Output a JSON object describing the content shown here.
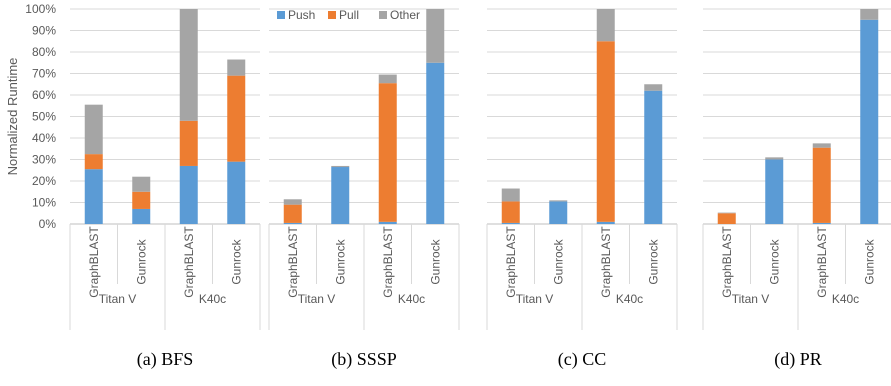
{
  "chart_data": {
    "type": "bar",
    "stacked": true,
    "ylabel": "Normalized Runtime",
    "ylim": [
      0,
      100
    ],
    "yticks": [
      "0%",
      "10%",
      "20%",
      "30%",
      "40%",
      "50%",
      "60%",
      "70%",
      "80%",
      "90%",
      "100%"
    ],
    "grid": true,
    "legend": {
      "placement": "top-left of panel (b)",
      "entries": [
        "Push",
        "Pull",
        "Other"
      ]
    },
    "colors": {
      "Push": "#5b9bd5",
      "Pull": "#ed7d31",
      "Other": "#a5a5a5"
    },
    "categories": [
      "GraphBLAST",
      "Gunrock",
      "GraphBLAST",
      "Gunrock"
    ],
    "groups": [
      {
        "label": "Titan V",
        "categories": [
          "GraphBLAST",
          "Gunrock"
        ]
      },
      {
        "label": "K40c",
        "categories": [
          "GraphBLAST",
          "Gunrock"
        ]
      }
    ],
    "panels": [
      {
        "caption": "(a) BFS",
        "series": [
          {
            "name": "Push",
            "values": [
              25.5,
              7,
              27,
              29
            ]
          },
          {
            "name": "Pull",
            "values": [
              7,
              8,
              21,
              40
            ]
          },
          {
            "name": "Other",
            "values": [
              23,
              7,
              52,
              7.5
            ]
          }
        ]
      },
      {
        "caption": "(b) SSSP",
        "series": [
          {
            "name": "Push",
            "values": [
              0.5,
              26.5,
              1,
              75
            ]
          },
          {
            "name": "Pull",
            "values": [
              8.5,
              0,
              64.5,
              0
            ]
          },
          {
            "name": "Other",
            "values": [
              2.5,
              0.5,
              4,
              25
            ]
          }
        ]
      },
      {
        "caption": "(c) CC",
        "series": [
          {
            "name": "Push",
            "values": [
              0.5,
              10.5,
              1,
              62
            ]
          },
          {
            "name": "Pull",
            "values": [
              10,
              0,
              84,
              0
            ]
          },
          {
            "name": "Other",
            "values": [
              6,
              0.5,
              15,
              3
            ]
          }
        ]
      },
      {
        "caption": "(d) PR",
        "series": [
          {
            "name": "Push",
            "values": [
              0,
              30,
              0.5,
              95
            ]
          },
          {
            "name": "Pull",
            "values": [
              5,
              0,
              35,
              0
            ]
          },
          {
            "name": "Other",
            "values": [
              0.3,
              1,
              2,
              5
            ]
          }
        ]
      }
    ]
  }
}
